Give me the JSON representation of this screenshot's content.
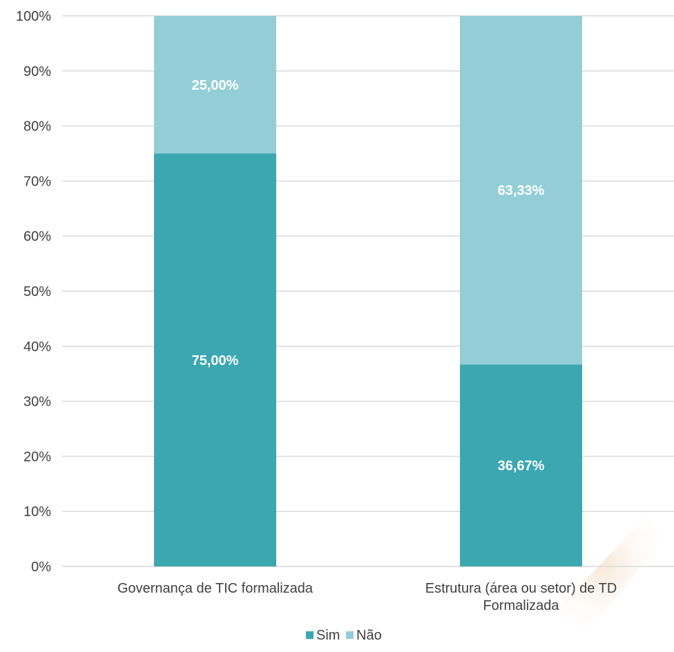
{
  "chart_data": {
    "type": "bar",
    "stacked": true,
    "categories": [
      [
        "Governança de TIC formalizada"
      ],
      [
        "Estrutura (área ou setor) de TD",
        "Formalizada"
      ]
    ],
    "series": [
      {
        "name": "Sim",
        "values": [
          75.0,
          36.67
        ],
        "labels": [
          "75,00%",
          "36,67%"
        ],
        "color": "#3ca7b0"
      },
      {
        "name": "Não",
        "values": [
          25.0,
          63.33
        ],
        "labels": [
          "25,00%",
          "63,33%"
        ],
        "color": "#93ced6"
      }
    ],
    "ylim": [
      0,
      100
    ],
    "yticks": [
      "0%",
      "10%",
      "20%",
      "30%",
      "40%",
      "50%",
      "60%",
      "70%",
      "80%",
      "90%",
      "100%"
    ],
    "grid": true,
    "legend": "bottom",
    "title": "",
    "xlabel": "",
    "ylabel": ""
  }
}
